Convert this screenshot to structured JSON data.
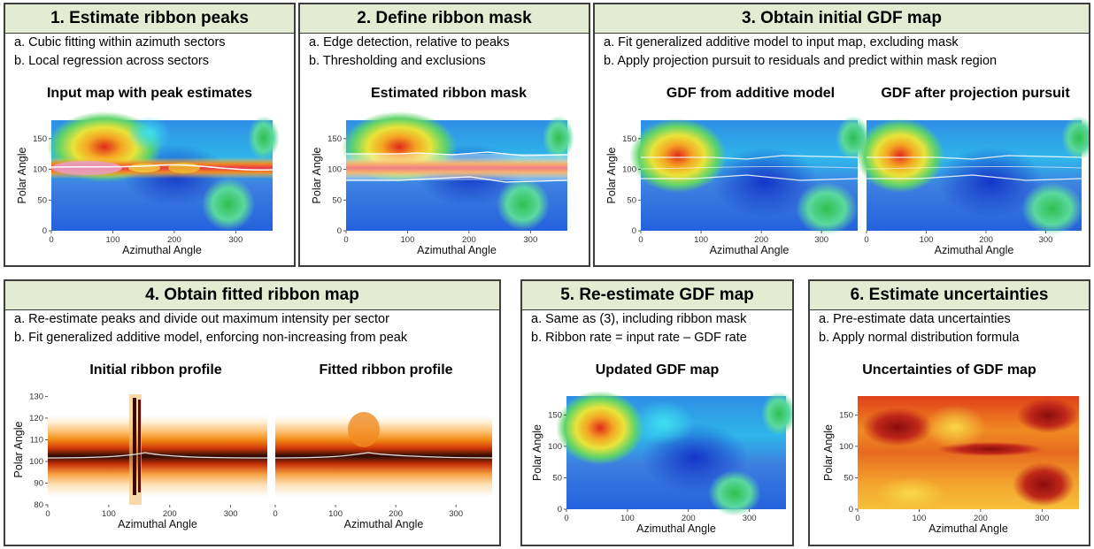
{
  "panels": [
    {
      "title": "1. Estimate ribbon peaks",
      "bullets": [
        "a. Cubic fitting within azimuth sectors",
        "b. Local regression across sectors"
      ],
      "plot_titles": [
        "Input map with peak estimates"
      ]
    },
    {
      "title": "2. Define ribbon mask",
      "bullets": [
        "a. Edge detection, relative to peaks",
        "b. Thresholding and exclusions"
      ],
      "plot_titles": [
        "Estimated ribbon mask"
      ]
    },
    {
      "title": "3. Obtain initial GDF map",
      "bullets": [
        "a. Fit generalized additive model to input map, excluding mask",
        "b. Apply projection pursuit to residuals and predict within mask region"
      ],
      "plot_titles": [
        "GDF from additive model",
        "GDF after projection pursuit"
      ]
    },
    {
      "title": "4. Obtain fitted ribbon map",
      "bullets": [
        "a. Re-estimate peaks and divide out maximum intensity per sector",
        "b. Fit generalized additive model, enforcing non-increasing from peak"
      ],
      "plot_titles": [
        "Initial ribbon profile",
        "Fitted ribbon profile"
      ]
    },
    {
      "title": "5. Re-estimate GDF map",
      "bullets": [
        "a. Same as (3), including ribbon mask",
        "b. Ribbon rate = input rate – GDF rate"
      ],
      "plot_titles": [
        "Updated GDF map"
      ]
    },
    {
      "title": "6. Estimate uncertainties",
      "bullets": [
        "a. Pre-estimate data uncertainties",
        "b. Apply normal distribution formula"
      ],
      "plot_titles": [
        "Uncertainties of GDF map"
      ]
    }
  ],
  "axes": {
    "x_label": "Azimuthal Angle",
    "y_label": "Polar Angle",
    "x_ticks": [
      "0",
      "100",
      "200",
      "300"
    ],
    "y_ticks_map": [
      "0",
      "50",
      "100",
      "150"
    ],
    "y_ticks_profile": [
      "80",
      "90",
      "100",
      "110",
      "120",
      "130"
    ]
  },
  "colors": {
    "panel_header": "#e3ecd3",
    "panel_border": "#3d3d3d",
    "map_low": "#1a3fd6",
    "map_mid": "#22c8e8",
    "map_high": "#e02a1a",
    "ribbon_peak": "#b0105a",
    "uncert_low": "#f6d23c",
    "uncert_high": "#7a0a0a"
  }
}
